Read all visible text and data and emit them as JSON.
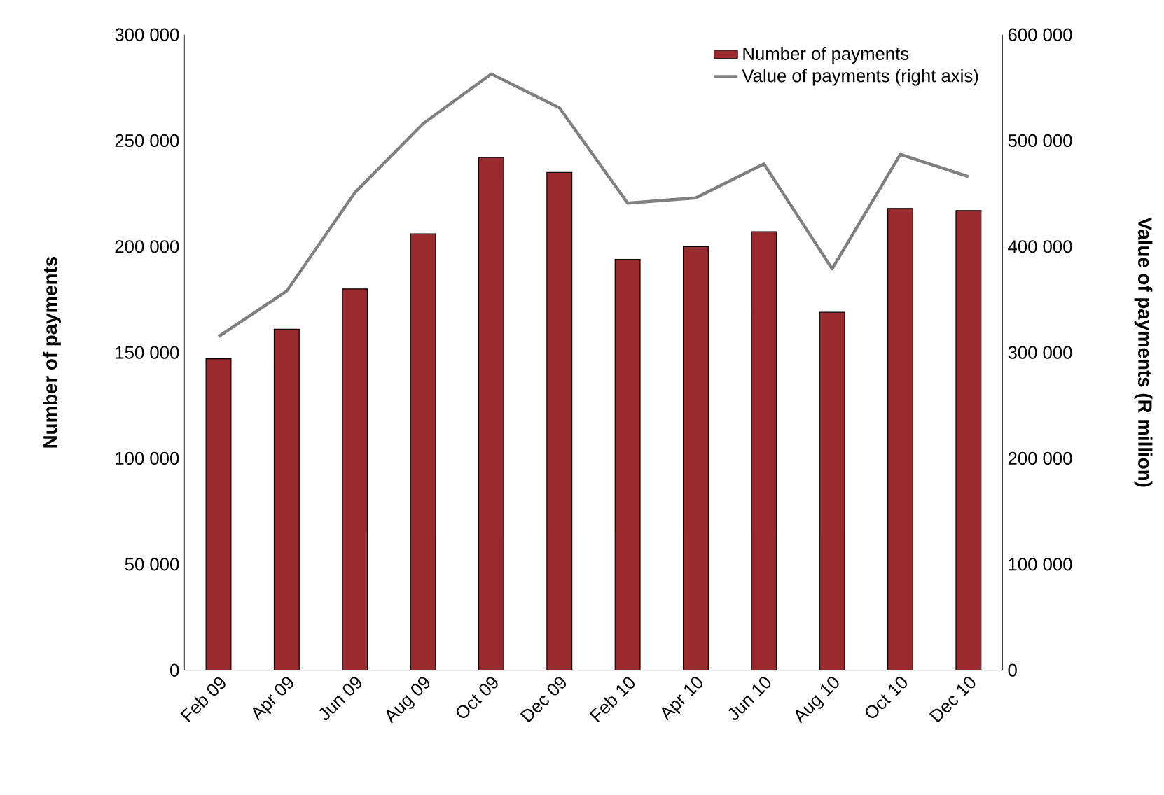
{
  "chart_data": {
    "type": "bar",
    "ylabel": "Number of payments",
    "y2label": "Value of payments (R million)",
    "categories": [
      "Feb 09",
      "Apr 09",
      "Jun 09",
      "Aug 09",
      "Oct 09",
      "Dec 09",
      "Feb 10",
      "Apr 10",
      "Jun 10",
      "Aug 10",
      "Oct 10",
      "Dec 10"
    ],
    "series": [
      {
        "name": "Number of payments",
        "color": "#9b2a2e",
        "values": [
          147000,
          161000,
          180000,
          206000,
          242000,
          235000,
          194000,
          200000,
          207000,
          169000,
          218000,
          217000
        ]
      },
      {
        "name": "Value of payments (right axis)",
        "type": "line",
        "axis": "y2",
        "color": "#808080",
        "values": [
          315000,
          358000,
          451000,
          516000,
          563000,
          531000,
          441000,
          446000,
          478000,
          379000,
          487000,
          466000
        ]
      }
    ],
    "ylim": [
      0,
      300000
    ],
    "yticks": [
      {
        "value": 0,
        "label": "0"
      },
      {
        "value": 50000,
        "label": "50 000"
      },
      {
        "value": 100000,
        "label": "100 000"
      },
      {
        "value": 150000,
        "label": "150 000"
      },
      {
        "value": 200000,
        "label": "200 000"
      },
      {
        "value": 250000,
        "label": "250 000"
      },
      {
        "value": 300000,
        "label": "300 000"
      }
    ],
    "y2lim": [
      0,
      600000
    ],
    "y2ticks": [
      {
        "value": 0,
        "label": "0"
      },
      {
        "value": 100000,
        "label": "100 000"
      },
      {
        "value": 200000,
        "label": "200 000"
      },
      {
        "value": 300000,
        "label": "300 000"
      },
      {
        "value": 400000,
        "label": "400 000"
      },
      {
        "value": 500000,
        "label": "500 000"
      },
      {
        "value": 600000,
        "label": "600 000"
      }
    ],
    "grid": false,
    "legend": "top right",
    "line_style": "solid",
    "marker": "none"
  }
}
